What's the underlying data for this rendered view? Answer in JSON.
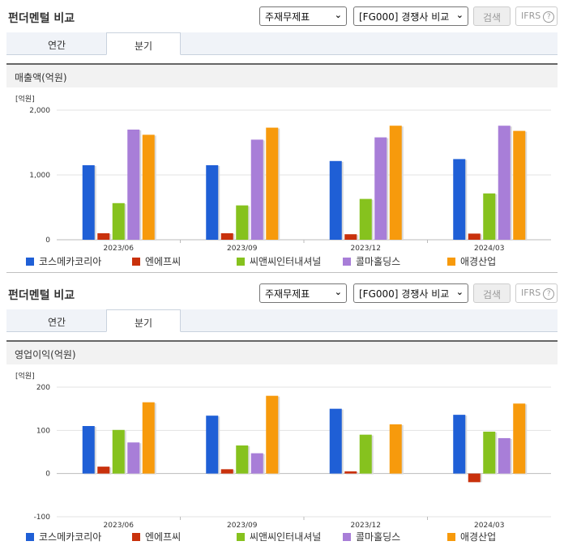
{
  "panel_title": "펀더멘털 비교",
  "select1": "주재무제표",
  "select2": "[FG000] 경쟁사 비교",
  "search_btn": "검색",
  "ifrs_label": "IFRS",
  "ifrs_help": "?",
  "tabs": [
    "연간",
    "분기"
  ],
  "colors": [
    "#1f5fd6",
    "#c9310c",
    "#86c21e",
    "#a87ed8",
    "#f79a0c"
  ],
  "chart_data": [
    {
      "type": "bar",
      "title": "매출액(억원)",
      "unit": "[억원]",
      "categories": [
        "2023/06",
        "2023/09",
        "2023/12",
        "2024/03"
      ],
      "ylim": [
        0,
        2000
      ],
      "yticks": [
        0,
        1000,
        2000
      ],
      "ytick_labels": [
        "0",
        "1,000",
        "2,000"
      ],
      "series": [
        {
          "name": "코스메카코리아",
          "values": [
            1150,
            1150,
            1215,
            1245
          ]
        },
        {
          "name": "엔에프씨",
          "values": [
            100,
            100,
            85,
            95
          ]
        },
        {
          "name": "씨앤씨인터내셔널",
          "values": [
            565,
            530,
            630,
            715
          ]
        },
        {
          "name": "콜마홀딩스",
          "values": [
            1700,
            1545,
            1580,
            1760
          ]
        },
        {
          "name": "애경산업",
          "values": [
            1620,
            1730,
            1760,
            1680
          ]
        }
      ]
    },
    {
      "type": "bar",
      "title": "영업이익(억원)",
      "unit": "[억원]",
      "categories": [
        "2023/06",
        "2023/09",
        "2023/12",
        "2024/03"
      ],
      "ylim": [
        -100,
        200
      ],
      "yticks": [
        -100,
        0,
        100,
        200
      ],
      "ytick_labels": [
        "-100",
        "0",
        "100",
        "200"
      ],
      "series": [
        {
          "name": "코스메카코리아",
          "values": [
            110,
            134,
            150,
            136
          ]
        },
        {
          "name": "엔에프씨",
          "values": [
            16,
            10,
            5,
            -20
          ]
        },
        {
          "name": "씨앤씨인터내셔널",
          "values": [
            101,
            65,
            90,
            97
          ]
        },
        {
          "name": "콜마홀딩스",
          "values": [
            72,
            47,
            0,
            82
          ]
        },
        {
          "name": "애경산업",
          "values": [
            165,
            180,
            114,
            162
          ]
        }
      ]
    }
  ]
}
